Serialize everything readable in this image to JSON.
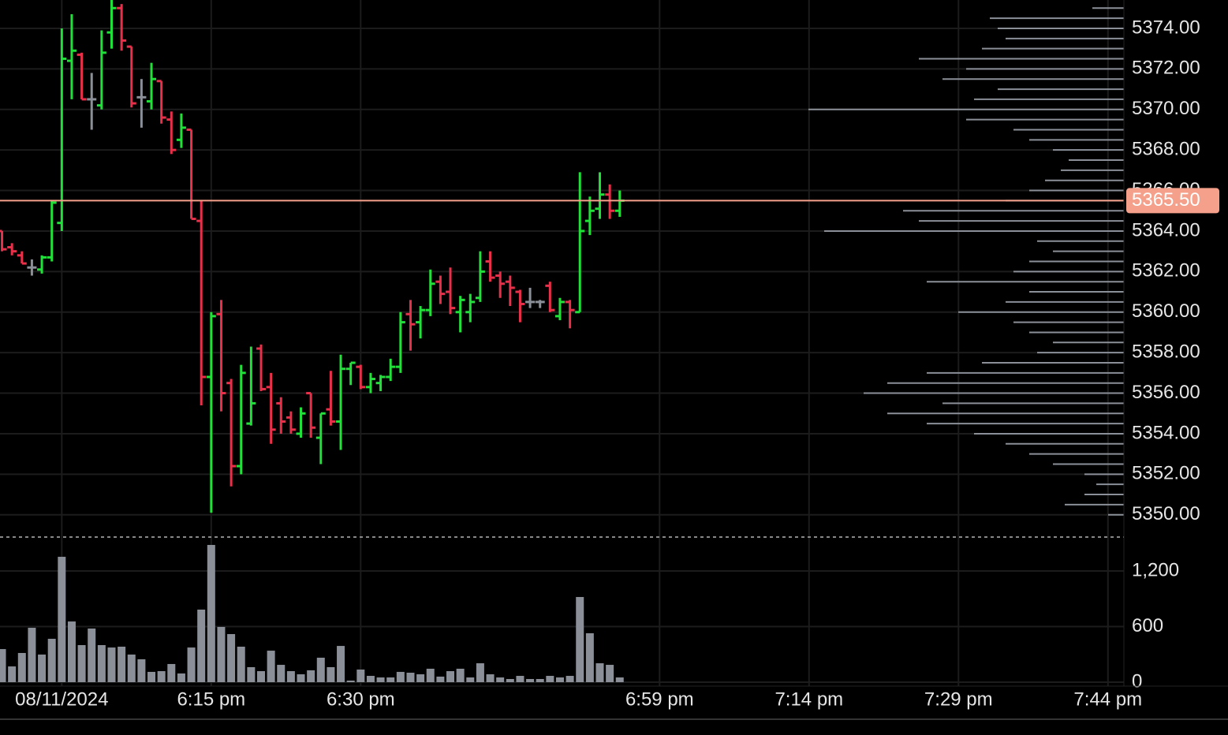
{
  "chart_data": [
    {
      "type": "ohlc",
      "x": [
        -6,
        -5,
        -4,
        -3,
        -2,
        -1,
        0,
        1,
        2,
        3,
        4,
        5,
        6,
        7,
        8,
        9,
        10,
        11,
        12,
        13,
        14,
        15,
        16,
        17,
        18,
        19,
        20,
        21,
        22,
        23,
        24,
        25,
        26,
        27,
        28,
        29,
        30,
        31,
        32,
        33,
        34,
        35,
        36,
        37,
        38,
        39,
        40,
        41,
        42,
        43,
        44,
        45,
        46,
        47,
        48,
        49,
        50,
        51,
        52,
        53,
        54,
        55,
        56
      ],
      "open": [
        5364,
        5363.2,
        5362.8,
        5362.2,
        5362.1,
        5362.7,
        5364.4,
        5372.4,
        5372.7,
        5370.5,
        5370.2,
        5373.8,
        5375,
        5373.1,
        5370.6,
        5370.4,
        5371.4,
        5369.5,
        5368.5,
        5369,
        5364.5,
        5356.8,
        5359.9,
        5356.5,
        5352.4,
        5354.5,
        5358.2,
        5356.3,
        5355.5,
        5354.8,
        5354,
        5356,
        5353.8,
        5355.2,
        5354.6,
        5357.2,
        5357.3,
        5356.3,
        5356.5,
        5356.8,
        5357.3,
        5359.9,
        5359.5,
        5360.1,
        5361.5,
        5361,
        5360,
        5360,
        5360.7,
        5362.5,
        5361.8,
        5361.5,
        5361,
        5360.5,
        5360.5,
        5361.3,
        5359.8,
        5360.5,
        5360,
        5364.5,
        5365.1,
        5365.8,
        5365
      ],
      "high": [
        5364,
        5363.4,
        5363,
        5362.6,
        5362.8,
        5365.5,
        5374,
        5374.7,
        5372.8,
        5371.8,
        5373.9,
        5375.4,
        5375.2,
        5373.1,
        5371.5,
        5372.3,
        5371.4,
        5369.9,
        5369.8,
        5369,
        5365.5,
        5360,
        5360.6,
        5356.7,
        5357.4,
        5358.3,
        5358.4,
        5357,
        5355.8,
        5355.1,
        5355.3,
        5356,
        5355,
        5357.1,
        5357.9,
        5357.5,
        5357.4,
        5357,
        5356.9,
        5357.7,
        5360,
        5360.6,
        5360.3,
        5362.1,
        5361.8,
        5362.2,
        5360.8,
        5360.9,
        5363,
        5363,
        5362,
        5361.8,
        5361.1,
        5361.2,
        5360.6,
        5361.5,
        5360.7,
        5360.6,
        5366.9,
        5365.7,
        5366.9,
        5366.3,
        5366
      ],
      "low": [
        5363,
        5362.8,
        5362.4,
        5361.8,
        5361.9,
        5362.5,
        5364,
        5370.5,
        5370.5,
        5369,
        5370,
        5373,
        5372.9,
        5370.1,
        5369.1,
        5370,
        5369.3,
        5367.8,
        5368.1,
        5364.6,
        5355.4,
        5350.1,
        5355.1,
        5351.4,
        5352,
        5354.4,
        5356.1,
        5353.5,
        5354,
        5354,
        5353.8,
        5353.8,
        5352.5,
        5354.4,
        5353.2,
        5356.4,
        5356.2,
        5356,
        5356.1,
        5356.6,
        5357,
        5358.1,
        5358.7,
        5359.8,
        5360.4,
        5359.9,
        5359,
        5359.5,
        5360.5,
        5361.5,
        5360.7,
        5360.3,
        5359.5,
        5360.2,
        5360.2,
        5360,
        5359.6,
        5359.2,
        5360,
        5363.8,
        5364.6,
        5364.6,
        5364.7
      ],
      "close": [
        5363.1,
        5363,
        5362.4,
        5362.2,
        5362.7,
        5365.4,
        5372.5,
        5372.9,
        5370.5,
        5370.5,
        5372.8,
        5375,
        5373.4,
        5370.3,
        5370.6,
        5371.5,
        5369.6,
        5368,
        5369.1,
        5364.6,
        5356.8,
        5359.8,
        5356,
        5352.4,
        5357,
        5355.5,
        5356.2,
        5354.2,
        5354.6,
        5354.2,
        5355,
        5354.3,
        5355,
        5354.6,
        5357.2,
        5357.5,
        5356.3,
        5356.7,
        5356.8,
        5357.3,
        5359.5,
        5359.4,
        5360.1,
        5361.4,
        5360.9,
        5360.2,
        5360.6,
        5360.5,
        5362,
        5361.7,
        5361.4,
        5361.2,
        5360.4,
        5360.5,
        5360.5,
        5360.1,
        5360.5,
        5360.1,
        5364,
        5365,
        5365.8,
        5365,
        5365.5
      ],
      "colors": {
        "up": "#22e03a",
        "down": "#e8304a",
        "flat": "#8a8f98"
      },
      "xlim": [
        -6.2,
        106.6
      ],
      "ylim": [
        5348.9,
        5375.4
      ],
      "yticks": [
        {
          "value": 5350,
          "label": "5350.00"
        },
        {
          "value": 5352,
          "label": "5352.00"
        },
        {
          "value": 5354,
          "label": "5354.00"
        },
        {
          "value": 5356,
          "label": "5356.00"
        },
        {
          "value": 5358,
          "label": "5358.00"
        },
        {
          "value": 5360,
          "label": "5360.00"
        },
        {
          "value": 5362,
          "label": "5362.00"
        },
        {
          "value": 5364,
          "label": "5364.00"
        },
        {
          "value": 5366,
          "label": "5366.00"
        },
        {
          "value": 5368,
          "label": "5368.00"
        },
        {
          "value": 5370,
          "label": "5370.00"
        },
        {
          "value": 5372,
          "label": "5372.00"
        },
        {
          "value": 5374,
          "label": "5374.00"
        }
      ],
      "last_price": {
        "value": 5365.5,
        "label": "5365.50",
        "color": "#f4a08a"
      },
      "volume_profile": {
        "color": "#8a8f98",
        "prices": [
          5350,
          5350.5,
          5351,
          5351.5,
          5352,
          5352.5,
          5353,
          5353.5,
          5354,
          5354.5,
          5355,
          5355.5,
          5356,
          5356.5,
          5357,
          5357.5,
          5358,
          5358.5,
          5359,
          5359.5,
          5360,
          5360.5,
          5361,
          5361.5,
          5362,
          5362.5,
          5363,
          5363.5,
          5364,
          5364.5,
          5365,
          5365.5,
          5366,
          5366.5,
          5367,
          5367.5,
          5368,
          5368.5,
          5369,
          5369.5,
          5370,
          5370.5,
          5371,
          5371.5,
          5372,
          5372.5,
          5373,
          5373.5,
          5374,
          5374.5,
          5375
        ],
        "values": [
          20,
          75,
          50,
          35,
          50,
          90,
          120,
          150,
          190,
          250,
          300,
          230,
          330,
          300,
          250,
          180,
          110,
          90,
          120,
          140,
          210,
          150,
          120,
          250,
          140,
          120,
          90,
          110,
          380,
          260,
          280,
          150,
          120,
          100,
          80,
          70,
          90,
          120,
          140,
          200,
          400,
          190,
          160,
          230,
          200,
          260,
          180,
          150,
          160,
          170,
          40
        ]
      },
      "grid": true
    },
    {
      "type": "bar",
      "x": [
        -6,
        -5,
        -4,
        -3,
        -2,
        -1,
        0,
        1,
        2,
        3,
        4,
        5,
        6,
        7,
        8,
        9,
        10,
        11,
        12,
        13,
        14,
        15,
        16,
        17,
        18,
        19,
        20,
        21,
        22,
        23,
        24,
        25,
        26,
        27,
        28,
        29,
        30,
        31,
        32,
        33,
        34,
        35,
        36,
        37,
        38,
        39,
        40,
        41,
        42,
        43,
        44,
        45,
        46,
        47,
        48,
        49,
        50,
        51,
        52,
        53,
        54,
        55,
        56
      ],
      "values": [
        357,
        170,
        315,
        587,
        298,
        468,
        1353,
        655,
        400,
        579,
        400,
        374,
        383,
        298,
        247,
        111,
        119,
        196,
        94,
        374,
        783,
        1481,
        596,
        519,
        383,
        162,
        119,
        340,
        187,
        119,
        85,
        128,
        264,
        162,
        391,
        17,
        136,
        68,
        51,
        51,
        111,
        102,
        85,
        145,
        60,
        119,
        145,
        51,
        204,
        85,
        51,
        34,
        68,
        34,
        34,
        68,
        51,
        68,
        919,
        528,
        204,
        187,
        51
      ],
      "color": "#8a8f98",
      "xlim": [
        -6.2,
        106.6
      ],
      "ylim": [
        0,
        1566
      ],
      "yticks": [
        0,
        600,
        {
          "value": 1200,
          "label": "1,200"
        }
      ],
      "xticks": [
        {
          "value": 0,
          "label": "08/11/2024"
        },
        {
          "value": 15,
          "label": "6:15 pm"
        },
        {
          "value": 30,
          "label": "6:30 pm"
        },
        {
          "value": 60,
          "label": "6:59 pm"
        },
        {
          "value": 75,
          "label": "7:14 pm"
        },
        {
          "value": 90,
          "label": "7:29 pm"
        },
        {
          "value": 105,
          "label": "7:44 pm"
        }
      ],
      "grid": true
    }
  ]
}
